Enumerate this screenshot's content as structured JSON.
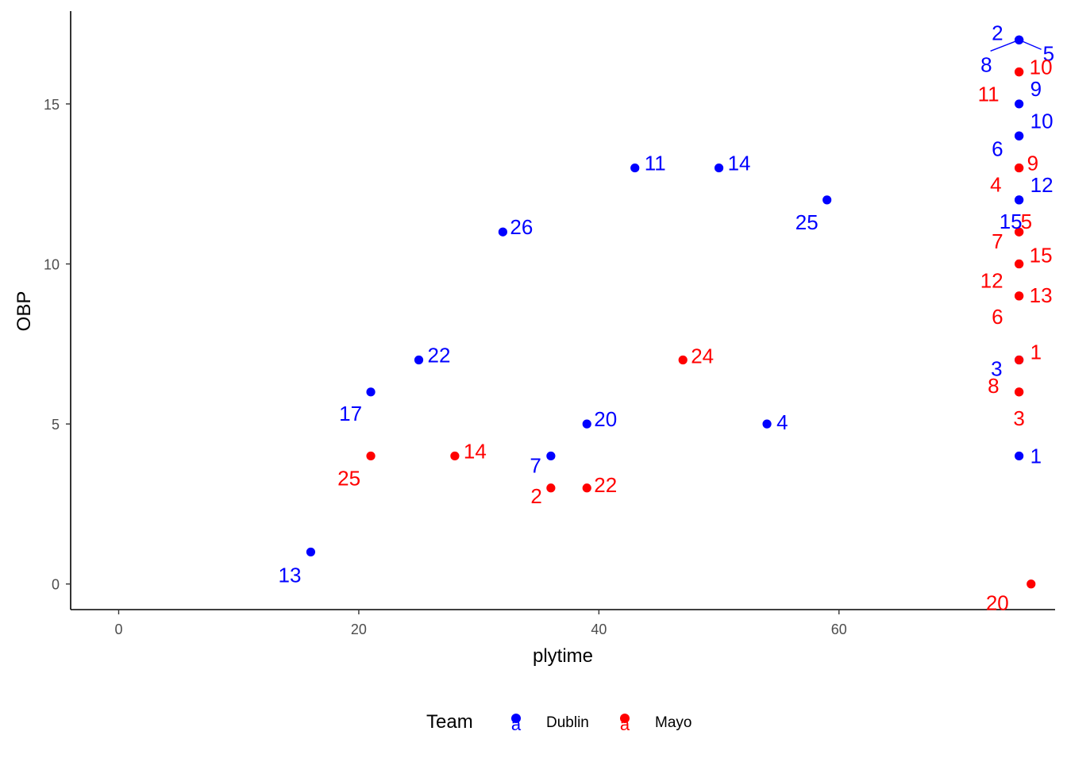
{
  "chart_data": {
    "type": "scatter",
    "title": "",
    "xlabel": "plytime",
    "ylabel": "OBP",
    "xlim": [
      -4,
      78
    ],
    "ylim": [
      -0.8,
      17.9
    ],
    "x_ticks": [
      0,
      20,
      40,
      60
    ],
    "y_ticks": [
      0,
      5,
      10,
      15
    ],
    "grid": false,
    "legend": {
      "title": "Team",
      "placement": "bottom",
      "key_glyph": "a",
      "entries": [
        "Dublin",
        "Mayo"
      ]
    },
    "series": [
      {
        "name": "Dublin",
        "color": "#0000ff",
        "points": [
          {
            "x": 75,
            "y": 4,
            "label": "1"
          },
          {
            "x": 75,
            "y": 17,
            "label": "2"
          },
          {
            "x": 75,
            "y": 7,
            "label": "3"
          },
          {
            "x": 54,
            "y": 5,
            "label": "4"
          },
          {
            "x": 75,
            "y": 17,
            "label": "5"
          },
          {
            "x": 75,
            "y": 14,
            "label": "6"
          },
          {
            "x": 36,
            "y": 4,
            "label": "7"
          },
          {
            "x": 75,
            "y": 17,
            "label": "8"
          },
          {
            "x": 75,
            "y": 15,
            "label": "9"
          },
          {
            "x": 75,
            "y": 14,
            "label": "10"
          },
          {
            "x": 43,
            "y": 13,
            "label": "11"
          },
          {
            "x": 75,
            "y": 12,
            "label": "12"
          },
          {
            "x": 16,
            "y": 1,
            "label": "13"
          },
          {
            "x": 50,
            "y": 13,
            "label": "14"
          },
          {
            "x": 75,
            "y": 12,
            "label": "15"
          },
          {
            "x": 21,
            "y": 6,
            "label": "17"
          },
          {
            "x": 39,
            "y": 5,
            "label": "20"
          },
          {
            "x": 25,
            "y": 7,
            "label": "22"
          },
          {
            "x": 59,
            "y": 12,
            "label": "25"
          },
          {
            "x": 32,
            "y": 11,
            "label": "26"
          }
        ]
      },
      {
        "name": "Mayo",
        "color": "#ff0000",
        "points": [
          {
            "x": 75,
            "y": 7,
            "label": "1"
          },
          {
            "x": 36,
            "y": 3,
            "label": "2"
          },
          {
            "x": 75,
            "y": 6,
            "label": "3"
          },
          {
            "x": 75,
            "y": 13,
            "label": "4"
          },
          {
            "x": 75,
            "y": 11,
            "label": "5"
          },
          {
            "x": 75,
            "y": 9,
            "label": "6"
          },
          {
            "x": 75,
            "y": 11,
            "label": "7"
          },
          {
            "x": 75,
            "y": 6,
            "label": "8"
          },
          {
            "x": 75,
            "y": 13,
            "label": "9"
          },
          {
            "x": 75,
            "y": 16,
            "label": "10"
          },
          {
            "x": 75,
            "y": 16,
            "label": "11"
          },
          {
            "x": 75,
            "y": 10,
            "label": "12"
          },
          {
            "x": 75,
            "y": 9,
            "label": "13"
          },
          {
            "x": 28,
            "y": 4,
            "label": "14"
          },
          {
            "x": 75,
            "y": 10,
            "label": "15"
          },
          {
            "x": 76,
            "y": 0,
            "label": "20"
          },
          {
            "x": 39,
            "y": 3,
            "label": "22"
          },
          {
            "x": 47,
            "y": 7,
            "label": "24"
          },
          {
            "x": 21,
            "y": 4,
            "label": "25"
          }
        ]
      }
    ]
  }
}
